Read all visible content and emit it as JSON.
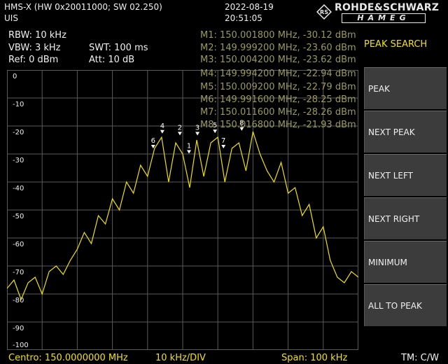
{
  "header": {
    "device_line": "HMS-X (HW 0x20011000; SW 02.250)",
    "mode": "UIS",
    "date": "2022-08-19",
    "time": "20:51:05",
    "brand_top": "ROHDE&SCHWARZ",
    "brand_bottom": "HAMEG"
  },
  "params": {
    "rbw": "RBW: 10 kHz",
    "vbw": "VBW: 3 kHz",
    "swt": "SWT: 100 ms",
    "ref": "Ref: 0 dBm",
    "att": "Att: 10 dB"
  },
  "markers": [
    "M1: 150.001800 MHz, -30.12 dBm",
    "M2: 149.999200 MHz, -23.60 dBm",
    "M3: 150.004200 MHz, -23.62 dBm",
    "M4: 149.994200 MHz, -22.94 dBm",
    "M5: 150.009200 MHz, -22.79 dBm",
    "M6: 149.991600 MHz, -28.25 dBm",
    "M7: 150.011600 MHz, -28.26 dBm",
    "M8: 150.016800 MHz, -21.93 dBm"
  ],
  "menu": {
    "title": "PEAK SEARCH",
    "items": [
      "PEAK",
      "NEXT PEAK",
      "NEXT LEFT",
      "NEXT RIGHT",
      "MINIMUM",
      "ALL TO PEAK"
    ]
  },
  "footer": {
    "center": "Centro: 150.0000000 MHz",
    "div": "10 kHz/DIV",
    "span": "Span: 100 kHz",
    "tm": "TM: C/W"
  },
  "colors": {
    "trace": "#f2e200",
    "marker_text": "#9a9a5a",
    "grid": "#5a5a5a",
    "softkey_bg": "#3c3c3c"
  },
  "chart_data": {
    "type": "line",
    "x_range_mhz": [
      149.95,
      150.05
    ],
    "ylim": [
      -100,
      0
    ],
    "y_ticks": [
      "0",
      "-10",
      "-20",
      "-30",
      "-40",
      "-50",
      "-60",
      "-70",
      "-80",
      "-90",
      "-100"
    ],
    "grid": true,
    "marker_labels": [
      "4",
      "2",
      "3",
      "1",
      "6",
      "5",
      "7",
      "8"
    ],
    "marker_points": [
      {
        "label": "1",
        "x": 150.0018,
        "y": -30.12
      },
      {
        "label": "2",
        "x": 149.9992,
        "y": -23.6
      },
      {
        "label": "3",
        "x": 150.0042,
        "y": -23.62
      },
      {
        "label": "4",
        "x": 149.9942,
        "y": -22.94
      },
      {
        "label": "5",
        "x": 150.0092,
        "y": -22.79
      },
      {
        "label": "6",
        "x": 149.9916,
        "y": -28.25
      },
      {
        "label": "7",
        "x": 150.0116,
        "y": -28.26
      },
      {
        "label": "8",
        "x": 150.0168,
        "y": -21.93
      }
    ],
    "series": [
      {
        "x": [
          149.95,
          149.952,
          149.954,
          149.956,
          149.958,
          149.96,
          149.962,
          149.964,
          149.966,
          149.968,
          149.97,
          149.972,
          149.974,
          149.976,
          149.978,
          149.98,
          149.982,
          149.984,
          149.986,
          149.988,
          149.99,
          149.992,
          149.994,
          149.996,
          149.998,
          150.0,
          150.002,
          150.004,
          150.006,
          150.008,
          150.01,
          150.012,
          150.014,
          150.016,
          150.018,
          150.02,
          150.022,
          150.024,
          150.026,
          150.028,
          150.03,
          150.032,
          150.034,
          150.036,
          150.038,
          150.04,
          150.042,
          150.044,
          150.046,
          150.048,
          150.05
        ],
        "values": [
          -78,
          -75,
          -82,
          -76,
          -74,
          -80,
          -72,
          -70,
          -73,
          -68,
          -64,
          -58,
          -62,
          -52,
          -55,
          -46,
          -50,
          -40,
          -44,
          -34,
          -38,
          -28,
          -24,
          -40,
          -26,
          -30,
          -42,
          -25,
          -38,
          -26,
          -24,
          -40,
          -28,
          -26,
          -36,
          -22,
          -30,
          -36,
          -40,
          -33,
          -44,
          -42,
          -52,
          -48,
          -60,
          -56,
          -68,
          -74,
          -76,
          -72,
          -74
        ]
      }
    ]
  }
}
